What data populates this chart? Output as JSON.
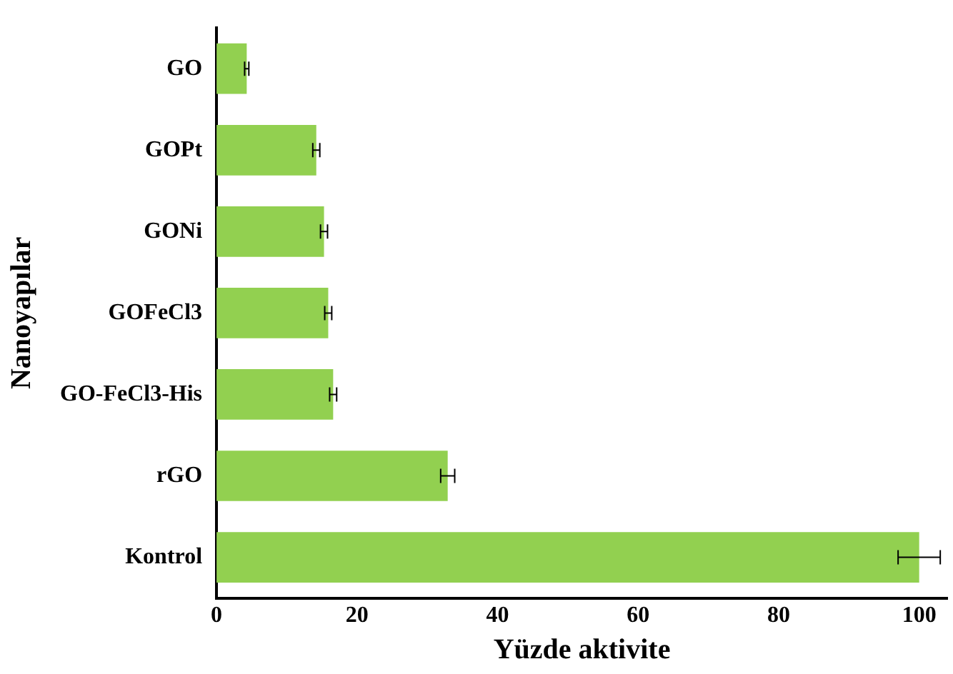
{
  "chart_data": {
    "type": "bar",
    "orientation": "horizontal",
    "xlabel": "Yüzde aktivite",
    "ylabel": "Nanoyapılar",
    "categories": [
      "GO",
      "GOPt",
      "GONi",
      "GOFeCl3",
      "GO-FeCl3-His",
      "rGO",
      "Kontrol"
    ],
    "values": [
      4.3,
      14.2,
      15.3,
      15.9,
      16.6,
      32.9,
      100
    ],
    "errors": [
      0.3,
      0.5,
      0.5,
      0.5,
      0.5,
      1,
      3
    ],
    "color": "#92d050",
    "xlim": [
      0,
      104
    ],
    "xticks": [
      0,
      20,
      40,
      60,
      80,
      100
    ],
    "grid": false,
    "legend": false
  }
}
